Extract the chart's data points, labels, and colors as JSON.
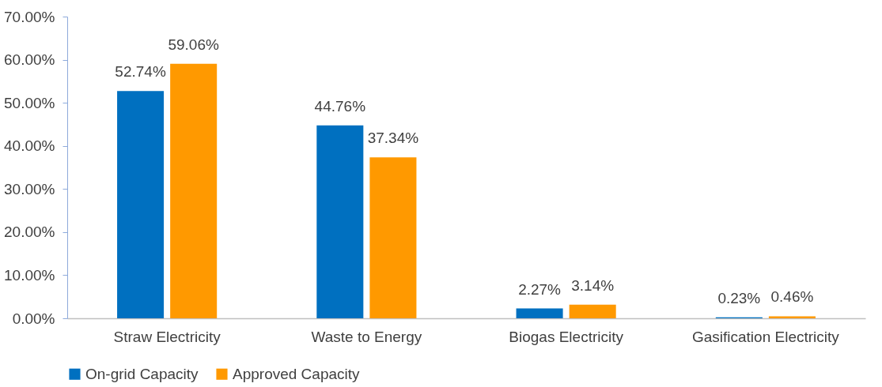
{
  "chart_data": {
    "type": "bar",
    "categories": [
      "Straw Electricity",
      "Waste to Energy",
      "Biogas Electricity",
      "Gasification Electricity"
    ],
    "series": [
      {
        "name": "On-grid Capacity",
        "color": "#0070c0",
        "values": [
          52.74,
          44.76,
          2.27,
          0.23
        ],
        "value_labels": [
          "52.74%",
          "44.76%",
          "2.27%",
          "0.23%"
        ]
      },
      {
        "name": "Approved Capacity",
        "color": "#ff9900",
        "values": [
          59.06,
          37.34,
          3.14,
          0.46
        ],
        "value_labels": [
          "59.06%",
          "37.34%",
          "3.14%",
          "0.46%"
        ]
      }
    ],
    "ylim": [
      0,
      70
    ],
    "yticks": [
      {
        "value": 0,
        "label": "0.00%"
      },
      {
        "value": 10,
        "label": "10.00%"
      },
      {
        "value": 20,
        "label": "20.00%"
      },
      {
        "value": 30,
        "label": "30.00%"
      },
      {
        "value": 40,
        "label": "40.00%"
      },
      {
        "value": 50,
        "label": "50.00%"
      },
      {
        "value": 60,
        "label": "60.00%"
      },
      {
        "value": 70,
        "label": "70.00%"
      }
    ],
    "legend": "bottom"
  }
}
